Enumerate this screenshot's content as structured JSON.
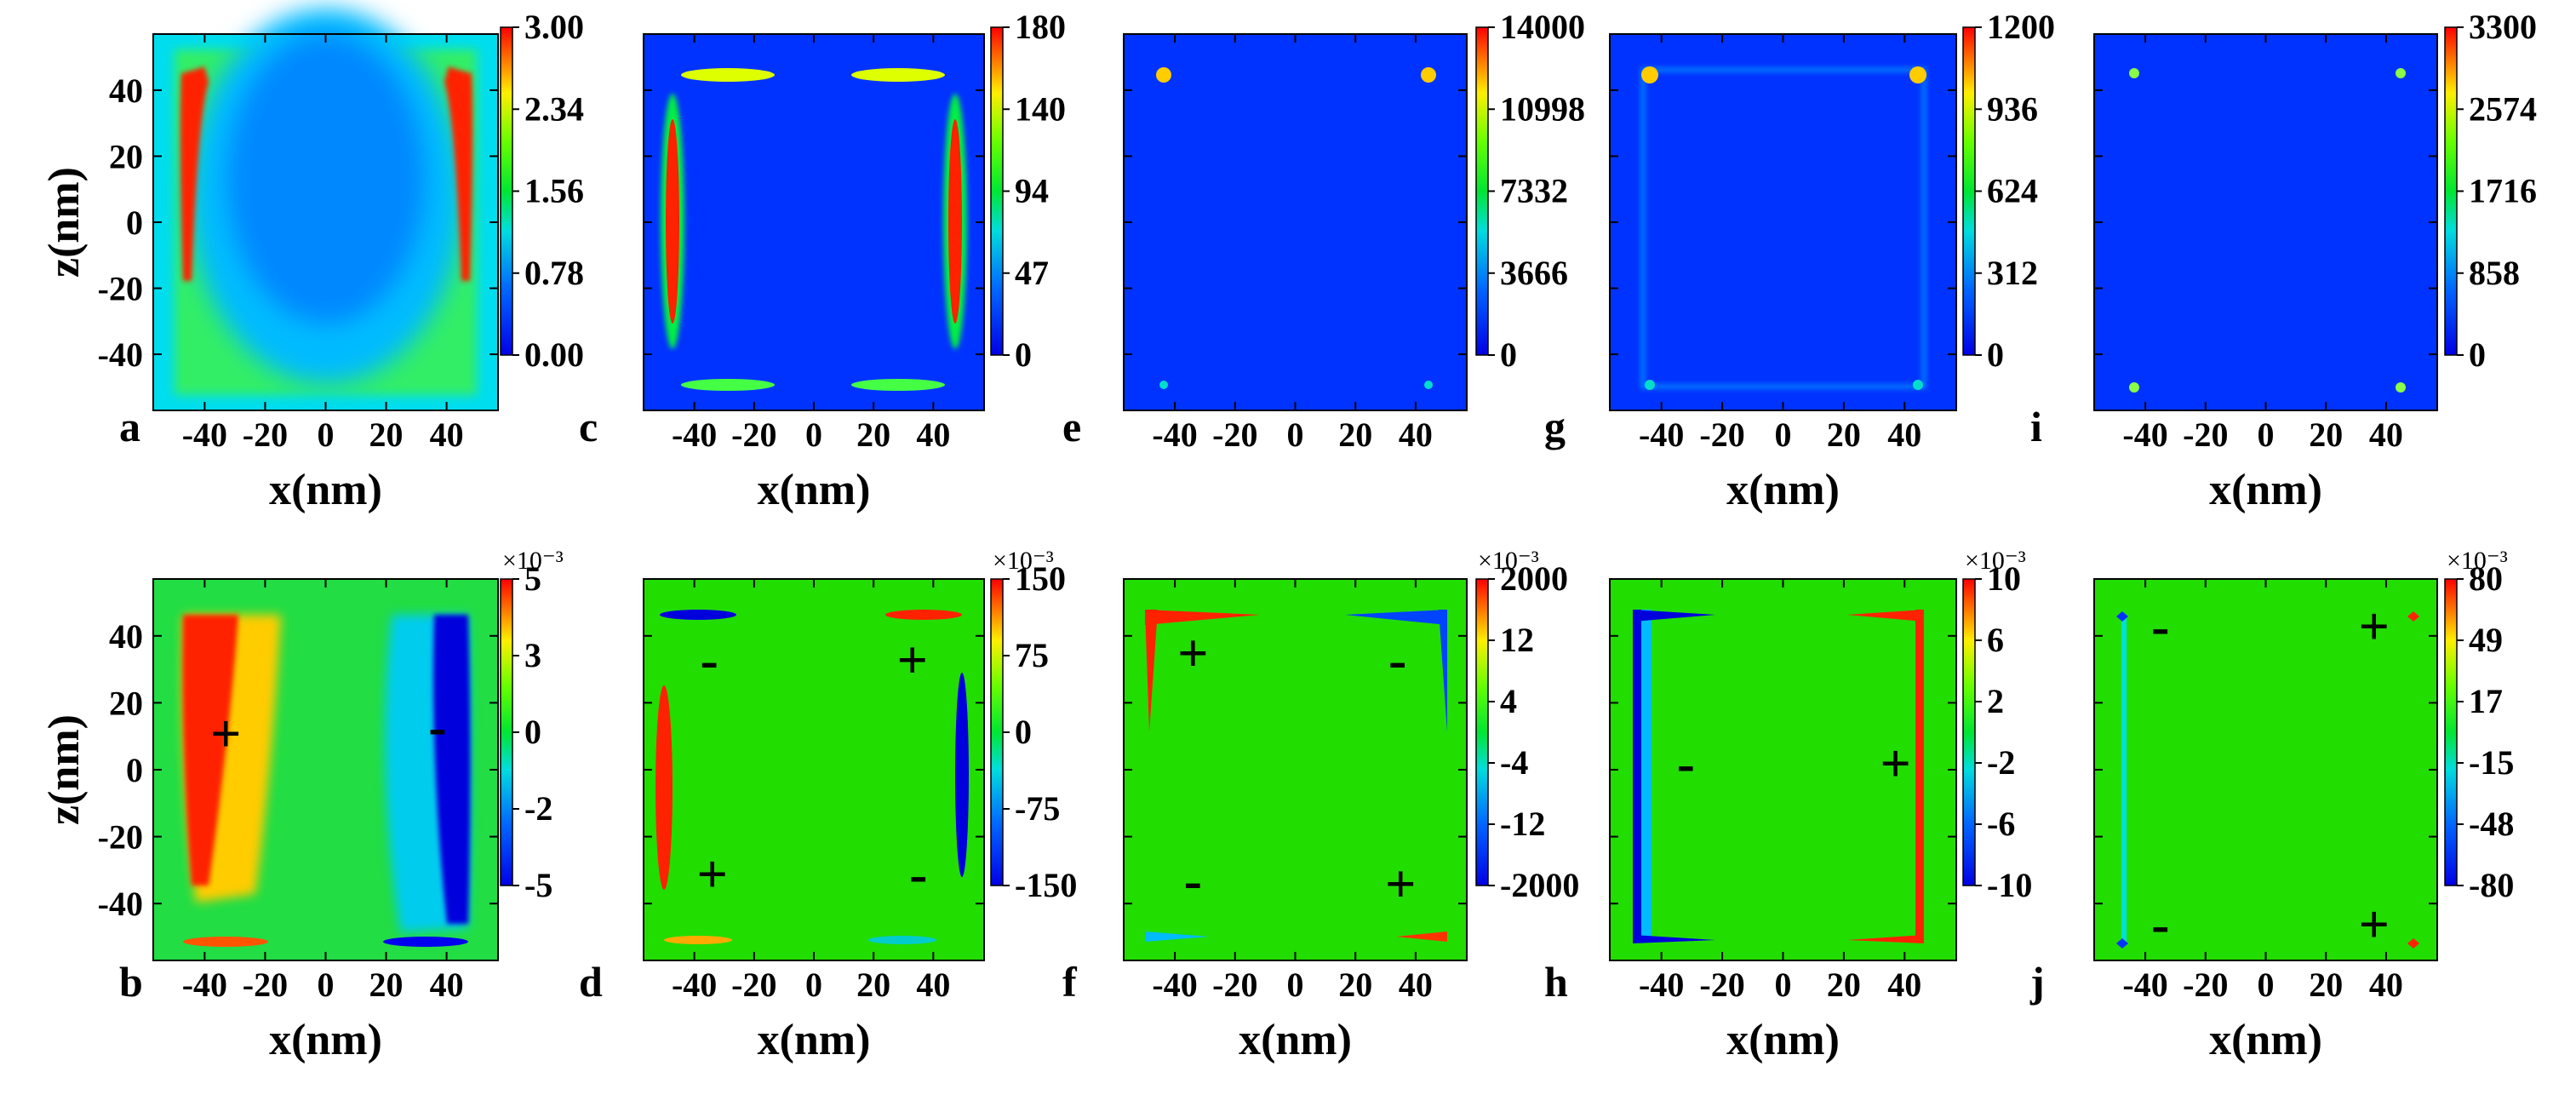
{
  "chart_data": [
    {
      "type": "heatmap",
      "panel": "a",
      "xlabel": "x(nm)",
      "ylabel": "z(nm)",
      "x_ticks": [
        "-40",
        "-20",
        "0",
        "20",
        "40"
      ],
      "y_ticks": [
        "40",
        "20",
        "0",
        "-20",
        "-40"
      ],
      "xlim": [
        -57,
        57
      ],
      "ylim": [
        -57,
        57
      ],
      "colorbar": {
        "labels": [
          "3.00",
          "2.34",
          "1.56",
          "0.78",
          "0.00"
        ],
        "exponent": "",
        "range": [
          0,
          3.0
        ]
      },
      "signs": []
    },
    {
      "type": "heatmap",
      "panel": "c",
      "xlabel": "x(nm)",
      "ylabel": "",
      "x_ticks": [
        "-40",
        "-20",
        "0",
        "20",
        "40"
      ],
      "y_ticks": [],
      "xlim": [
        -57,
        57
      ],
      "ylim": [
        -57,
        57
      ],
      "colorbar": {
        "labels": [
          "180",
          "140",
          "94",
          "47",
          "0"
        ],
        "exponent": "",
        "range": [
          0,
          180
        ]
      },
      "signs": []
    },
    {
      "type": "heatmap",
      "panel": "e",
      "xlabel": "",
      "ylabel": "",
      "x_ticks": [
        "-40",
        "-20",
        "0",
        "20",
        "40"
      ],
      "y_ticks": [],
      "xlim": [
        -57,
        57
      ],
      "ylim": [
        -57,
        57
      ],
      "colorbar": {
        "labels": [
          "14000",
          "10998",
          "7332",
          "3666",
          "0"
        ],
        "exponent": "",
        "range": [
          0,
          14000
        ]
      },
      "signs": []
    },
    {
      "type": "heatmap",
      "panel": "g",
      "xlabel": "x(nm)",
      "ylabel": "",
      "x_ticks": [
        "-40",
        "-20",
        "0",
        "20",
        "40"
      ],
      "y_ticks": [],
      "xlim": [
        -57,
        57
      ],
      "ylim": [
        -57,
        57
      ],
      "colorbar": {
        "labels": [
          "1200",
          "936",
          "624",
          "312",
          "0"
        ],
        "exponent": "",
        "range": [
          0,
          1200
        ]
      },
      "signs": []
    },
    {
      "type": "heatmap",
      "panel": "i",
      "xlabel": "x(nm)",
      "ylabel": "",
      "x_ticks": [
        "-40",
        "-20",
        "0",
        "20",
        "40"
      ],
      "y_ticks": [],
      "xlim": [
        -57,
        57
      ],
      "ylim": [
        -57,
        57
      ],
      "colorbar": {
        "labels": [
          "3300",
          "2574",
          "1716",
          "858",
          "0"
        ],
        "exponent": "",
        "range": [
          0,
          3300
        ]
      },
      "signs": []
    },
    {
      "type": "heatmap",
      "panel": "b",
      "xlabel": "x(nm)",
      "ylabel": "z(nm)",
      "x_ticks": [
        "-40",
        "-20",
        "0",
        "20",
        "40"
      ],
      "y_ticks": [
        "40",
        "20",
        "0",
        "-20",
        "-40"
      ],
      "xlim": [
        -57,
        57
      ],
      "ylim": [
        -57,
        57
      ],
      "colorbar": {
        "labels": [
          "5",
          "3",
          "0",
          "-2",
          "-5"
        ],
        "exponent": "×10⁻³",
        "range": [
          -5,
          5
        ]
      },
      "signs": [
        {
          "sym": "+",
          "x": -33,
          "z": 11
        },
        {
          "sym": "-",
          "x": 37,
          "z": 13
        }
      ]
    },
    {
      "type": "heatmap",
      "panel": "d",
      "xlabel": "x(nm)",
      "ylabel": "",
      "x_ticks": [
        "-40",
        "-20",
        "0",
        "20",
        "40"
      ],
      "y_ticks": [],
      "xlim": [
        -57,
        57
      ],
      "ylim": [
        -57,
        57
      ],
      "colorbar": {
        "labels": [
          "150",
          "75",
          "0",
          "-75",
          "-150"
        ],
        "exponent": "×10⁻³",
        "range": [
          -150,
          150
        ]
      },
      "signs": [
        {
          "sym": "-",
          "x": -35,
          "z": 33
        },
        {
          "sym": "+",
          "x": 33,
          "z": 33
        },
        {
          "sym": "+",
          "x": -34,
          "z": -31
        },
        {
          "sym": "-",
          "x": 35,
          "z": -31
        }
      ]
    },
    {
      "type": "heatmap",
      "panel": "f",
      "xlabel": "x(nm)",
      "ylabel": "",
      "x_ticks": [
        "-40",
        "-20",
        "0",
        "20",
        "40"
      ],
      "y_ticks": [],
      "xlim": [
        -57,
        57
      ],
      "ylim": [
        -57,
        57
      ],
      "colorbar": {
        "labels": [
          "2000",
          "12",
          "4",
          "-4",
          "-12",
          "-2000"
        ],
        "exponent": "×10⁻³",
        "range": [
          -2000,
          2000
        ]
      },
      "signs": [
        {
          "sym": "+",
          "x": -34,
          "z": 35
        },
        {
          "sym": "-",
          "x": 34,
          "z": 33
        },
        {
          "sym": "-",
          "x": -34,
          "z": -33
        },
        {
          "sym": "+",
          "x": 35,
          "z": -34
        }
      ]
    },
    {
      "type": "heatmap",
      "panel": "h",
      "xlabel": "x(nm)",
      "ylabel": "",
      "x_ticks": [
        "-40",
        "-20",
        "0",
        "20",
        "40"
      ],
      "y_ticks": [],
      "xlim": [
        -57,
        57
      ],
      "ylim": [
        -57,
        57
      ],
      "colorbar": {
        "labels": [
          "10",
          "6",
          "2",
          "-2",
          "-6",
          "-10"
        ],
        "exponent": "×10⁻³",
        "range": [
          -10,
          10
        ]
      },
      "signs": [
        {
          "sym": "-",
          "x": -32,
          "z": 2
        },
        {
          "sym": "+",
          "x": 37,
          "z": 2
        }
      ]
    },
    {
      "type": "heatmap",
      "panel": "j",
      "xlabel": "x(nm)",
      "ylabel": "",
      "x_ticks": [
        "-40",
        "-20",
        "0",
        "20",
        "40"
      ],
      "y_ticks": [],
      "xlim": [
        -57,
        57
      ],
      "ylim": [
        -57,
        57
      ],
      "colorbar": {
        "labels": [
          "80",
          "49",
          "17",
          "-15",
          "-48",
          "-80"
        ],
        "exponent": "×10⁻³",
        "range": [
          -80,
          80
        ]
      },
      "signs": [
        {
          "sym": "-",
          "x": -35,
          "z": 43
        },
        {
          "sym": "+",
          "x": 36,
          "z": 43
        },
        {
          "sym": "-",
          "x": -35,
          "z": -46
        },
        {
          "sym": "+",
          "x": 36,
          "z": -46
        }
      ]
    }
  ],
  "row_labels": {
    "top": [
      "a",
      "c",
      "e",
      "g",
      "i"
    ],
    "bottom": [
      "b",
      "d",
      "f",
      "h",
      "j"
    ]
  }
}
